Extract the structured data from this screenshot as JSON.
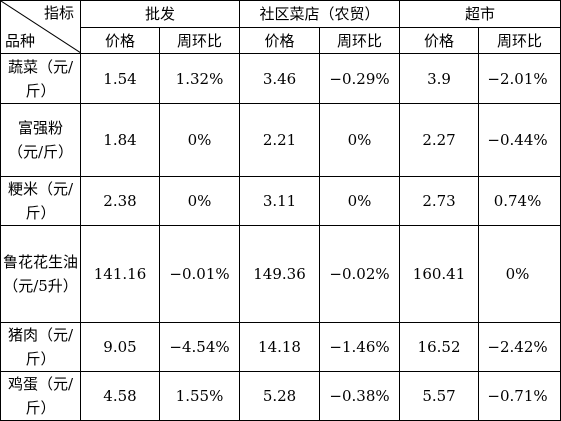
{
  "header": {
    "corner_top": "指标",
    "corner_bottom": "品种",
    "channels": [
      "批发",
      "社区菜店（农贸）",
      "超市"
    ],
    "sub_price": "价格",
    "sub_change": "周环比"
  },
  "rows": [
    {
      "name": "蔬菜（元/斤）",
      "values": [
        "1.54",
        "1.32%",
        "3.46",
        "−0.29%",
        "3.9",
        "−2.01%"
      ]
    },
    {
      "name": "富强粉（元/斤）",
      "values": [
        "1.84",
        "0%",
        "2.21",
        "0%",
        "2.27",
        "−0.44%"
      ]
    },
    {
      "name": "粳米（元/斤）",
      "values": [
        "2.38",
        "0%",
        "3.11",
        "0%",
        "2.73",
        "0.74%"
      ]
    },
    {
      "name": "鲁花花生油（元/5升）",
      "values": [
        "141.16",
        "−0.01%",
        "149.36",
        "−0.02%",
        "160.41",
        "0%"
      ]
    },
    {
      "name": "猪肉（元/斤）",
      "values": [
        "9.05",
        "−4.54%",
        "14.18",
        "−1.46%",
        "16.52",
        "−2.42%"
      ]
    },
    {
      "name": "鸡蛋（元/斤）",
      "values": [
        "4.58",
        "1.55%",
        "5.28",
        "−0.38%",
        "5.57",
        "−0.71%"
      ]
    }
  ]
}
